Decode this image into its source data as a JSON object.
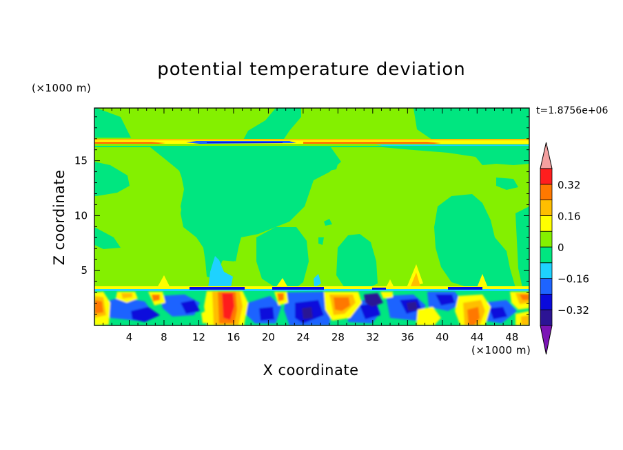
{
  "chart_data": {
    "type": "heatmap",
    "title": "potential temperature deviation",
    "xlabel": "X coordinate",
    "ylabel": "Z coordinate",
    "x_unit": "(×1000 m)",
    "y_unit": "(×1000 m)",
    "annotation": "t=1.8756e+06",
    "xlim": [
      0,
      50
    ],
    "ylim": [
      0,
      19.8
    ],
    "x_ticks": [
      4,
      8,
      12,
      16,
      20,
      24,
      28,
      32,
      36,
      40,
      44,
      48
    ],
    "y_ticks": [
      5,
      10,
      15
    ],
    "colorbar": {
      "levels": [
        -0.4,
        -0.32,
        -0.24,
        -0.16,
        -0.08,
        0,
        0.08,
        0.16,
        0.24,
        0.32,
        0.4
      ],
      "tick_labels": [
        "0.32",
        "0.16",
        "0",
        "−0.16",
        "−0.32"
      ],
      "tick_values": [
        0.32,
        0.16,
        0,
        -0.16,
        -0.32
      ],
      "colors": [
        "#7b14b5",
        "#2c1494",
        "#0a0adc",
        "#1e64ff",
        "#1ed2ff",
        "#00e680",
        "#84f000",
        "#ffff00",
        "#ffbe00",
        "#ff7800",
        "#ff1e1e",
        "#f4a0a0"
      ],
      "extend": "both"
    }
  }
}
